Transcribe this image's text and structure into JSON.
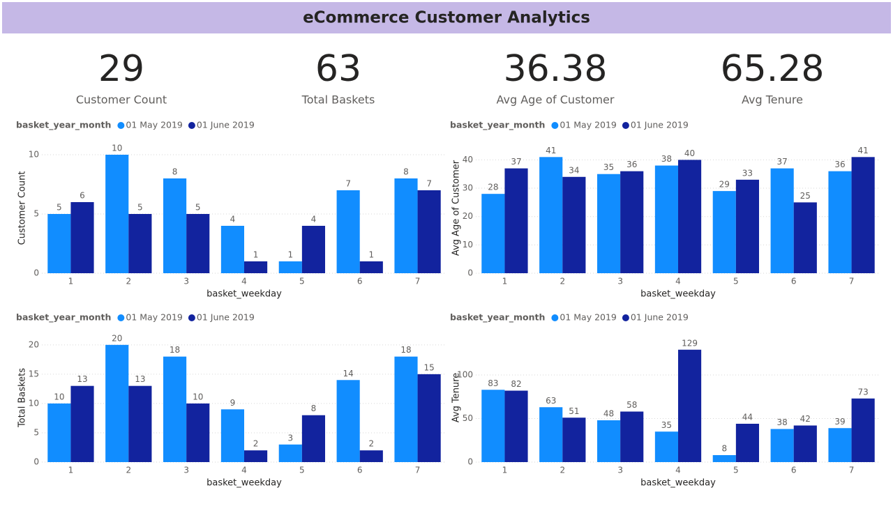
{
  "header": {
    "title": "eCommerce Customer Analytics"
  },
  "kpis": [
    {
      "value": 29,
      "label": "Customer Count"
    },
    {
      "value": 63,
      "label": "Total Baskets"
    },
    {
      "value": 36.38,
      "label": "Avg Age of Customer"
    },
    {
      "value": 65.28,
      "label": "Avg Tenure"
    }
  ],
  "chart_data": [
    {
      "type": "bar",
      "legend_title": "basket_year_month",
      "x_label": "basket_weekday",
      "y_label": "Customer Count",
      "categories": [
        "1",
        "2",
        "3",
        "4",
        "5",
        "6",
        "7"
      ],
      "series": [
        {
          "name": "01 May 2019",
          "color": "#118dff",
          "values": [
            5,
            10,
            8,
            4,
            1,
            7,
            8
          ]
        },
        {
          "name": "01 June 2019",
          "color": "#12239e",
          "values": [
            6,
            5,
            5,
            1,
            4,
            1,
            7
          ]
        }
      ],
      "ylim": [
        0,
        11
      ],
      "yticks": [
        0,
        5,
        10
      ],
      "grid": true
    },
    {
      "type": "bar",
      "legend_title": "basket_year_month",
      "x_label": "basket_weekday",
      "y_label": "Avg Age of Customer",
      "categories": [
        "1",
        "2",
        "3",
        "4",
        "5",
        "6",
        "7"
      ],
      "series": [
        {
          "name": "01 May 2019",
          "color": "#118dff",
          "values": [
            28,
            41,
            35,
            38,
            29,
            37,
            36
          ]
        },
        {
          "name": "01 June 2019",
          "color": "#12239e",
          "values": [
            37,
            34,
            36,
            40,
            33,
            25,
            41
          ]
        }
      ],
      "ylim": [
        0,
        46
      ],
      "yticks": [
        0,
        10,
        20,
        30,
        40
      ],
      "grid": true
    },
    {
      "type": "bar",
      "legend_title": "basket_year_month",
      "x_label": "basket_weekday",
      "y_label": "Total Baskets",
      "categories": [
        "1",
        "2",
        "3",
        "4",
        "5",
        "6",
        "7"
      ],
      "series": [
        {
          "name": "01 May 2019",
          "color": "#118dff",
          "values": [
            10,
            20,
            18,
            9,
            3,
            14,
            18
          ]
        },
        {
          "name": "01 June 2019",
          "color": "#12239e",
          "values": [
            13,
            13,
            10,
            2,
            8,
            2,
            15
          ]
        }
      ],
      "ylim": [
        0,
        22
      ],
      "yticks": [
        0,
        5,
        10,
        15,
        20
      ],
      "grid": true
    },
    {
      "type": "bar",
      "legend_title": "basket_year_month",
      "x_label": "basket_weekday",
      "y_label": "Avg Tenure",
      "categories": [
        "1",
        "2",
        "3",
        "4",
        "5",
        "6",
        "7"
      ],
      "series": [
        {
          "name": "01 May 2019",
          "color": "#118dff",
          "values": [
            83,
            63,
            48,
            35,
            8,
            38,
            39
          ]
        },
        {
          "name": "01 June 2019",
          "color": "#12239e",
          "values": [
            82,
            51,
            58,
            129,
            44,
            42,
            73
          ]
        }
      ],
      "ylim": [
        0,
        148
      ],
      "yticks": [
        0,
        50,
        100
      ],
      "grid": true
    }
  ]
}
